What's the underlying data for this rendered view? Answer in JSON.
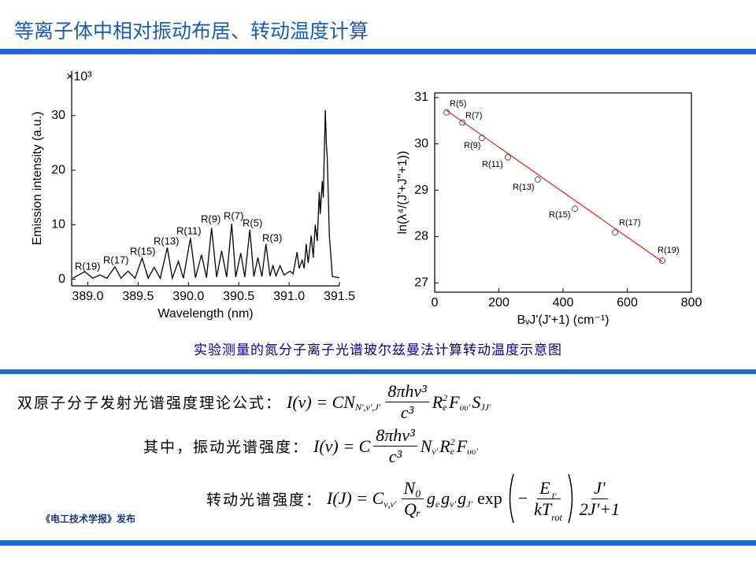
{
  "header": {
    "title": "等离子体中相对振动布居、转动温度计算"
  },
  "chart_data": [
    {
      "type": "line",
      "xlabel": "Wavelength (nm)",
      "ylabel": "Emission intensity (a.u.)",
      "y_multiplier": "×10³",
      "color": "#000000",
      "frame": false,
      "xlim": [
        388.84,
        391.5
      ],
      "ylim": [
        -1.2,
        38.2
      ],
      "xticks": [
        {
          "value": 389.0,
          "label": "389.0"
        },
        {
          "value": 389.5,
          "label": "389.5"
        },
        {
          "value": 390.0,
          "label": "390.0"
        },
        {
          "value": 390.5,
          "label": "390.5"
        },
        {
          "value": 391.0,
          "label": "391.0"
        },
        {
          "value": 391.5,
          "label": "391.5"
        }
      ],
      "yticks": [
        0,
        10,
        20,
        30
      ],
      "x": [
        388.85,
        388.97,
        389.05,
        389.12,
        389.19,
        389.27,
        389.33,
        389.4,
        389.47,
        389.54,
        389.6,
        389.66,
        389.72,
        389.79,
        389.84,
        389.9,
        389.95,
        390.02,
        390.07,
        390.13,
        390.18,
        390.23,
        390.28,
        390.33,
        390.38,
        390.43,
        390.47,
        390.52,
        390.56,
        390.61,
        390.65,
        390.69,
        390.73,
        390.77,
        390.81,
        390.84,
        390.87,
        390.91,
        390.95,
        391.01,
        391.04,
        391.08,
        391.1,
        391.13,
        391.15,
        391.17,
        391.19,
        391.22,
        391.24,
        391.26,
        391.28,
        391.3,
        391.31,
        391.33,
        391.34,
        391.36,
        391.37,
        391.38,
        391.4,
        391.43,
        391.5
      ],
      "values": [
        0.2,
        1.4,
        0.2,
        0.8,
        0.2,
        2.3,
        0.2,
        1.5,
        0.2,
        3.9,
        0.2,
        2.2,
        0.2,
        5.8,
        0.2,
        3.3,
        0.2,
        7.6,
        0.3,
        4.5,
        0.3,
        9.4,
        0.4,
        5.2,
        0.4,
        10.2,
        0.4,
        4.8,
        0.4,
        9.1,
        0.5,
        4,
        0.5,
        6.5,
        0.6,
        2.5,
        0.6,
        2.5,
        0.8,
        1.5,
        1.0,
        5,
        2,
        3.5,
        2,
        6.5,
        3,
        8,
        4,
        10,
        7,
        16,
        12,
        18,
        15,
        31,
        25,
        22,
        8,
        0.5,
        0.3
      ],
      "annotations": [
        "R(19)",
        "R(17)",
        "R(15)",
        "R(13)",
        "R(11)",
        "R(9)",
        "R(7)",
        "R(5)",
        "R(3)"
      ]
    },
    {
      "type": "scatter",
      "xlabel": "BᵥJ'(J'+1) (cm⁻¹)",
      "ylabel": "ln(λ⁴/(J'+J''+1))",
      "color": "#555555",
      "frame": true,
      "xlim": [
        0,
        800
      ],
      "ylim": [
        26.8,
        31.1
      ],
      "xticks": [
        0,
        200,
        400,
        600,
        800
      ],
      "yticks": [
        27,
        28,
        29,
        30,
        31
      ],
      "x": [
        37,
        86,
        147,
        228,
        321,
        437,
        562,
        709
      ],
      "values": [
        30.68,
        30.46,
        30.13,
        29.71,
        29.23,
        28.6,
        28.09,
        27.48
      ],
      "point_labels": [
        "R(5)",
        "R(7)",
        "R(9)",
        "R(11)",
        "R(13)",
        "R(15)",
        "R(17)",
        "R(19)"
      ],
      "fit": {
        "color": "#e0302a",
        "x": [
          37,
          709
        ],
        "values": [
          30.72,
          27.46
        ]
      }
    }
  ],
  "caption": "实验测量的氮分子离子光谱玻尔兹曼法计算转动温度示意图",
  "formulas": [
    {
      "label": "双原子分子发射光谱强度理论公式：",
      "parts": [
        "I(ν) = CN",
        "N',ν',J'",
        "8πhν³",
        "c³",
        "R",
        "2",
        "e",
        "F",
        "υυ'",
        "S",
        "JJ'"
      ]
    },
    {
      "label": "其中，振动光谱强度：",
      "parts": [
        "I(ν) = C",
        "8πhν³",
        "c³",
        "N",
        "ν'",
        "R",
        "2",
        "e",
        "F",
        "υυ'"
      ]
    },
    {
      "label": "转动光谱强度：",
      "parts": [
        "I(J) = C",
        "ν,ν'",
        "N₀",
        "Qᵣ",
        "g",
        "e",
        "g",
        "ν'",
        "g",
        "J'",
        "exp",
        "−",
        "E",
        "J'",
        "kT",
        "rot",
        "J'",
        "2J'+1"
      ]
    }
  ],
  "footer": "《电工技术学报》发布"
}
